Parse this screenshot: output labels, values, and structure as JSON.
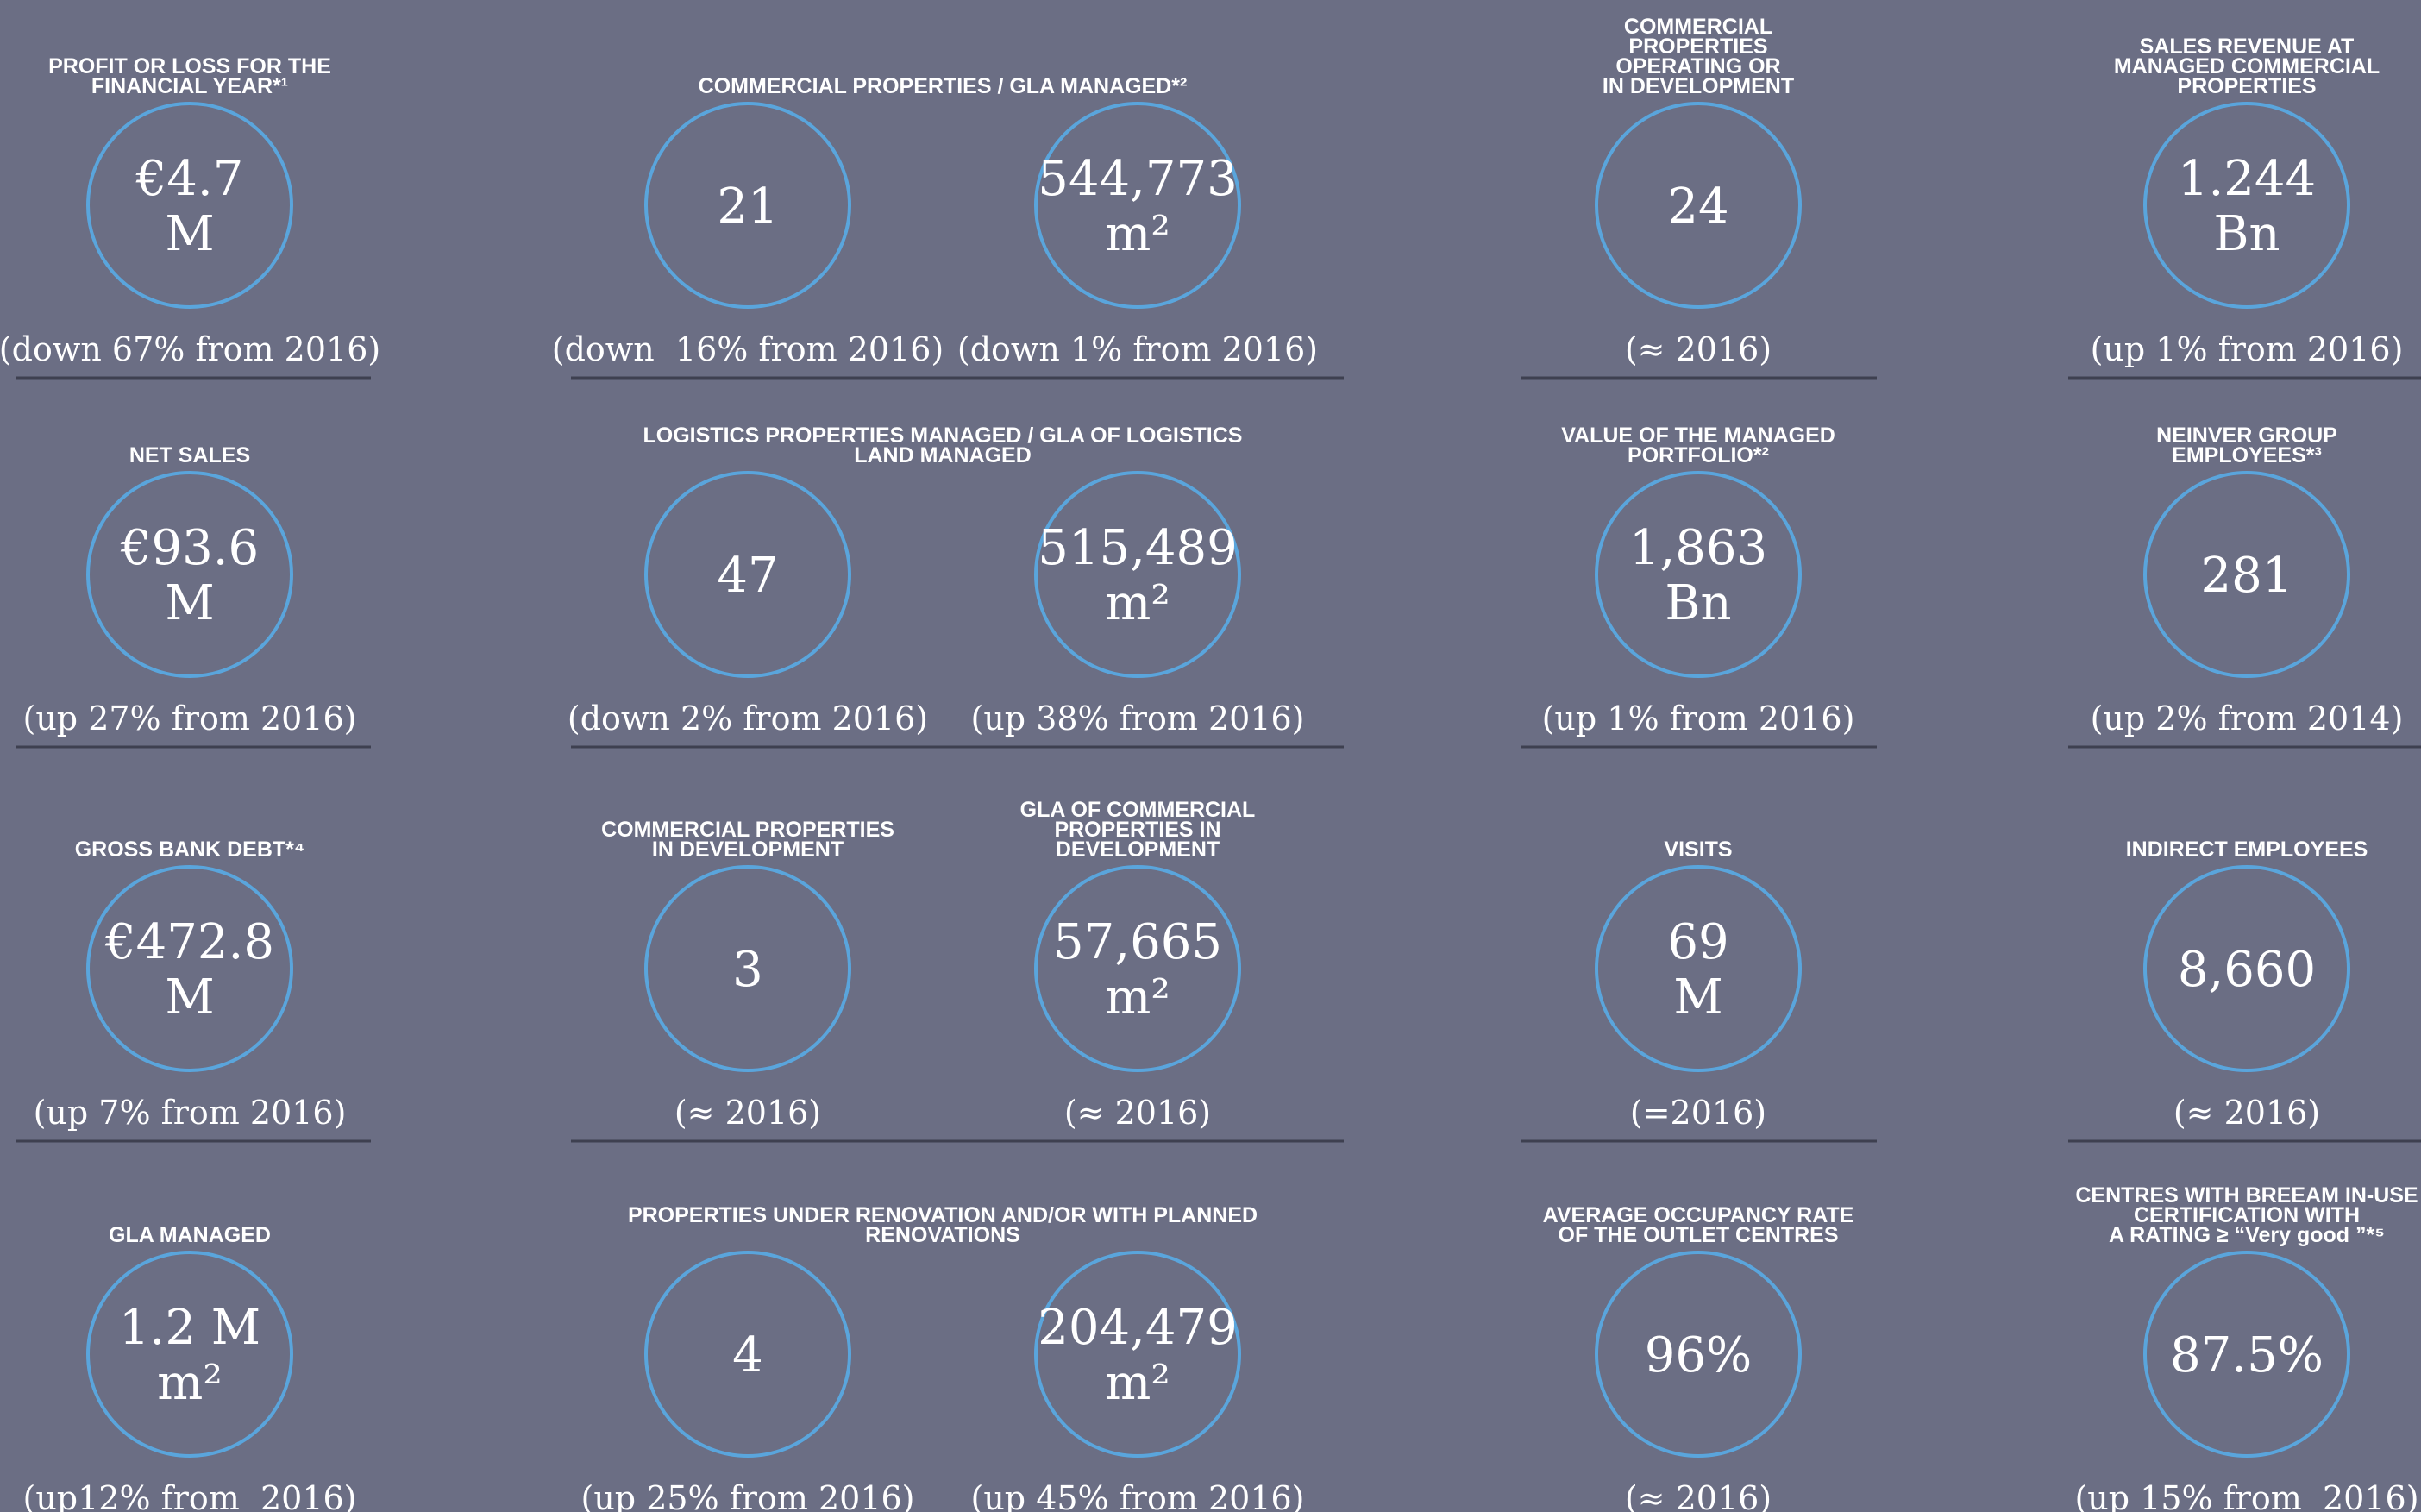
{
  "rows": [
    {
      "cells": [
        {
          "title": [
            "PROFIT OR LOSS FOR THE",
            "FINANCIAL YEAR*¹"
          ],
          "items": [
            {
              "value": [
                "€4.7",
                "M"
              ],
              "change": "(down 67% from 2016)"
            }
          ]
        },
        {
          "title": [
            "COMMERCIAL PROPERTIES / GLA MANAGED*²"
          ],
          "items": [
            {
              "value": [
                "21"
              ],
              "change": "(down  16% from 2016)"
            },
            {
              "value": [
                "544,773",
                "m²"
              ],
              "change": "(down 1% from 2016)"
            }
          ]
        },
        {
          "title": [
            "COMMERCIAL",
            "PROPERTIES",
            "OPERATING OR",
            "IN DEVELOPMENT"
          ],
          "items": [
            {
              "value": [
                "24"
              ],
              "change": "(≈ 2016)"
            }
          ]
        },
        {
          "title": [
            "SALES REVENUE AT",
            "MANAGED COMMERCIAL",
            "PROPERTIES"
          ],
          "items": [
            {
              "value": [
                "1.244",
                "Bn"
              ],
              "change": "(up 1% from 2016)"
            }
          ]
        }
      ]
    },
    {
      "cells": [
        {
          "title": [
            "NET SALES"
          ],
          "items": [
            {
              "value": [
                "€93.6",
                "M"
              ],
              "change": "(up 27% from 2016)"
            }
          ]
        },
        {
          "title": [
            "LOGISTICS PROPERTIES MANAGED / GLA OF LOGISTICS",
            "LAND MANAGED"
          ],
          "items": [
            {
              "value": [
                "47"
              ],
              "change": "(down 2% from 2016)"
            },
            {
              "value": [
                "515,489",
                "m²"
              ],
              "change": "(up 38% from 2016)"
            }
          ]
        },
        {
          "title": [
            "VALUE OF THE MANAGED",
            "PORTFOLIO*²"
          ],
          "items": [
            {
              "value": [
                "1,863",
                "Bn"
              ],
              "change": "(up 1% from 2016)"
            }
          ]
        },
        {
          "title": [
            "NEINVER GROUP",
            "EMPLOYEES*³"
          ],
          "items": [
            {
              "value": [
                "281"
              ],
              "change": "(up 2% from 2014)"
            }
          ]
        }
      ]
    },
    {
      "cells": [
        {
          "title": [
            "GROSS BANK DEBT*⁴"
          ],
          "items": [
            {
              "value": [
                "€472.8",
                "M"
              ],
              "change": "(up 7% from 2016)"
            }
          ]
        },
        {
          "items": [
            {
              "title": [
                "COMMERCIAL PROPERTIES",
                "IN DEVELOPMENT"
              ],
              "value": [
                "3"
              ],
              "change": "(≈ 2016)"
            },
            {
              "title": [
                "GLA OF COMMERCIAL",
                "PROPERTIES IN",
                "DEVELOPMENT"
              ],
              "value": [
                "57,665",
                "m²"
              ],
              "change": "(≈ 2016)"
            }
          ]
        },
        {
          "title": [
            "VISITS"
          ],
          "items": [
            {
              "value": [
                "69",
                "M"
              ],
              "change": "(=2016)"
            }
          ]
        },
        {
          "title": [
            "INDIRECT EMPLOYEES"
          ],
          "items": [
            {
              "value": [
                "8,660"
              ],
              "change": "(≈ 2016)"
            }
          ]
        }
      ]
    },
    {
      "cells": [
        {
          "title": [
            "GLA MANAGED"
          ],
          "items": [
            {
              "value": [
                "1.2 M",
                "m²"
              ],
              "change": "(up12% from  2016)"
            }
          ]
        },
        {
          "title": [
            "PROPERTIES UNDER RENOVATION AND/OR WITH PLANNED",
            "RENOVATIONS"
          ],
          "items": [
            {
              "value": [
                "4"
              ],
              "change": "(up 25% from 2016)"
            },
            {
              "value": [
                "204,479",
                "m²"
              ],
              "change": "(up 45% from 2016)"
            }
          ]
        },
        {
          "title": [
            "AVERAGE OCCUPANCY RATE",
            "OF THE OUTLET CENTRES"
          ],
          "items": [
            {
              "value": [
                "96%"
              ],
              "change": "(≈ 2016)"
            }
          ]
        },
        {
          "title": [
            "CENTRES WITH BREEAM IN-USE",
            "CERTIFICATION WITH",
            "A RATING ≥ “Very good ”*⁵"
          ],
          "items": [
            {
              "value": [
                "87.5%"
              ],
              "change": "(up 15% from  2016)"
            }
          ]
        }
      ]
    }
  ]
}
